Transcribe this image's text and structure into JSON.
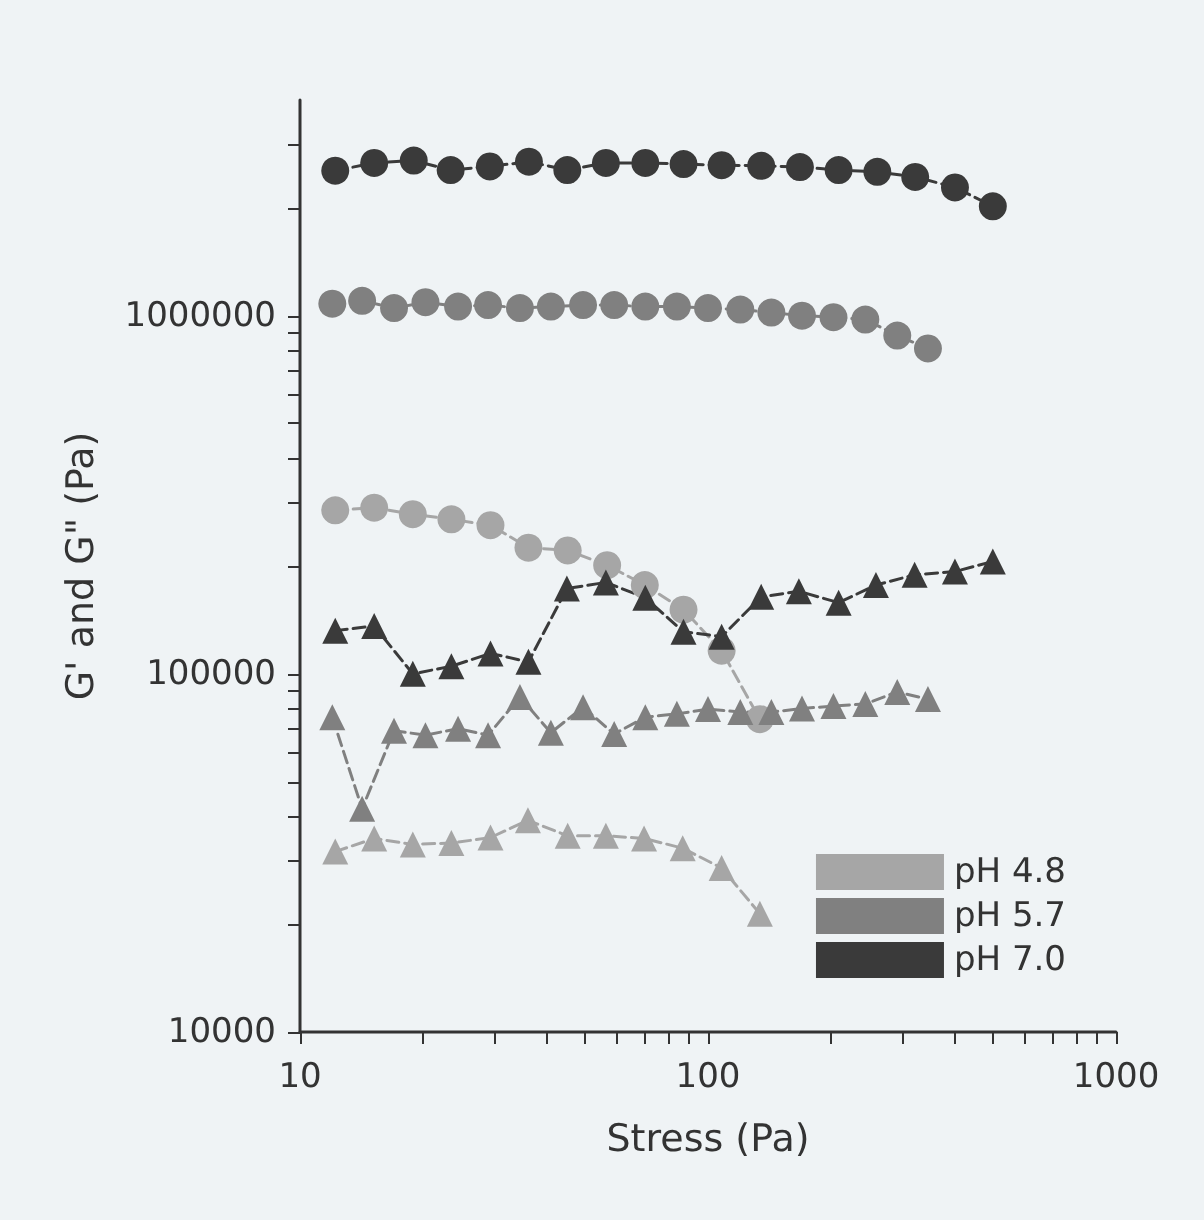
{
  "chart_data": {
    "type": "line",
    "xlabel": "Stress (Pa)",
    "ylabel": "G' and G\" (Pa)",
    "log": "xy",
    "grid": false,
    "legend": "bottom right",
    "marker": "circle",
    "line_style": "dashed",
    "xlim": [
      10,
      1000
    ],
    "ylim": [
      10000,
      4000000
    ],
    "xticks": [
      10,
      {
        "value": 20,
        "label": null
      },
      {
        "value": 30,
        "label": null
      },
      {
        "value": 40,
        "label": null
      },
      {
        "value": 50,
        "label": null
      },
      {
        "value": 60,
        "label": null
      },
      {
        "value": 70,
        "label": null
      },
      {
        "value": 80,
        "label": null
      },
      {
        "value": 90,
        "label": null
      },
      100,
      {
        "value": 200,
        "label": null
      },
      {
        "value": 300,
        "label": null
      },
      {
        "value": 400,
        "label": null
      },
      {
        "value": 500,
        "label": null
      },
      {
        "value": 600,
        "label": null
      },
      {
        "value": 700,
        "label": null
      },
      {
        "value": 800,
        "label": null
      },
      {
        "value": 900,
        "label": null
      },
      1000
    ],
    "yticks": [
      10000,
      {
        "value": 20000,
        "label": null
      },
      {
        "value": 30000,
        "label": null
      },
      {
        "value": 40000,
        "label": null
      },
      {
        "value": 50000,
        "label": null
      },
      {
        "value": 60000,
        "label": null
      },
      {
        "value": 70000,
        "label": null
      },
      {
        "value": 80000,
        "label": null
      },
      {
        "value": 90000,
        "label": null
      },
      100000,
      {
        "value": 200000,
        "label": null
      },
      {
        "value": 300000,
        "label": null
      },
      {
        "value": 400000,
        "label": null
      },
      {
        "value": 500000,
        "label": null
      },
      {
        "value": 600000,
        "label": null
      },
      {
        "value": 700000,
        "label": null
      },
      {
        "value": 800000,
        "label": null
      },
      {
        "value": 900000,
        "label": null
      },
      1000000,
      {
        "value": 2000000,
        "label": null
      },
      {
        "value": 3000000,
        "label": null
      }
    ],
    "series": [
      {
        "name": "pH 4.8",
        "color": "#a6a6a6",
        "x": [
          12.2,
          15.2,
          18.9,
          23.5,
          29.3,
          36.3,
          45.3,
          56.6,
          70.0,
          87.1,
          108,
          134
        ],
        "values": [
          286000,
          291000,
          279000,
          270000,
          260000,
          225000,
          221000,
          201000,
          177000,
          151000,
          116000,
          74700
        ]
      },
      {
        "name": "pH 5.7",
        "color": "#808080",
        "x": [
          12.0,
          14.2,
          17.0,
          20.3,
          24.4,
          28.9,
          34.6,
          41.2,
          49.4,
          58.9,
          70.2,
          83.9,
          100,
          120,
          143,
          170,
          203,
          243,
          291,
          346
        ],
        "values": [
          1080000,
          1100000,
          1050000,
          1090000,
          1060000,
          1070000,
          1050000,
          1060000,
          1070000,
          1070000,
          1060000,
          1060000,
          1050000,
          1040000,
          1020000,
          1000000,
          990000,
          975000,
          880000,
          810000
        ]
      },
      {
        "name": "pH 7.0",
        "color": "#3a3a3a",
        "x": [
          12.2,
          15.2,
          19.0,
          23.4,
          29.2,
          36.4,
          45.2,
          56.2,
          70.2,
          87.1,
          108,
          135,
          168,
          209,
          260,
          322,
          403,
          499
        ],
        "values": [
          2540000,
          2670000,
          2710000,
          2550000,
          2610000,
          2690000,
          2550000,
          2670000,
          2670000,
          2650000,
          2630000,
          2620000,
          2600000,
          2550000,
          2520000,
          2440000,
          2280000,
          2020000
        ]
      },
      {
        "color": "#a6a6a6",
        "marker": "triangle",
        "x": [
          12.2,
          15.2,
          18.9,
          23.5,
          29.3,
          36.2,
          45.3,
          56.2,
          69.7,
          86.7,
          108,
          134
        ],
        "values": [
          31900,
          34700,
          33400,
          33700,
          34900,
          39000,
          35300,
          35300,
          34700,
          32600,
          28700,
          21400
        ]
      },
      {
        "color": "#808080",
        "marker": "triangle",
        "x": [
          12.0,
          14.2,
          17.0,
          20.3,
          24.4,
          28.9,
          34.6,
          41.2,
          49.4,
          58.9,
          70.2,
          83.9,
          100,
          120,
          143,
          170,
          203,
          243,
          291,
          346
        ],
        "values": [
          75700,
          42000,
          69400,
          67400,
          70300,
          67400,
          86100,
          68500,
          80700,
          67900,
          75700,
          77300,
          79700,
          78200,
          78200,
          80000,
          81300,
          82400,
          89000,
          85000
        ]
      },
      {
        "color": "#3a3a3a",
        "marker": "triangle",
        "x": [
          12.2,
          15.2,
          18.9,
          23.5,
          29.3,
          36.3,
          45.1,
          56.2,
          70.2,
          87.1,
          108,
          135,
          167,
          209,
          258,
          321,
          403,
          499
        ],
        "values": [
          132000,
          136000,
          100000,
          105000,
          114000,
          108000,
          173000,
          180000,
          163000,
          131000,
          127000,
          164000,
          170000,
          158000,
          177000,
          189000,
          193000,
          206000
        ]
      }
    ]
  }
}
